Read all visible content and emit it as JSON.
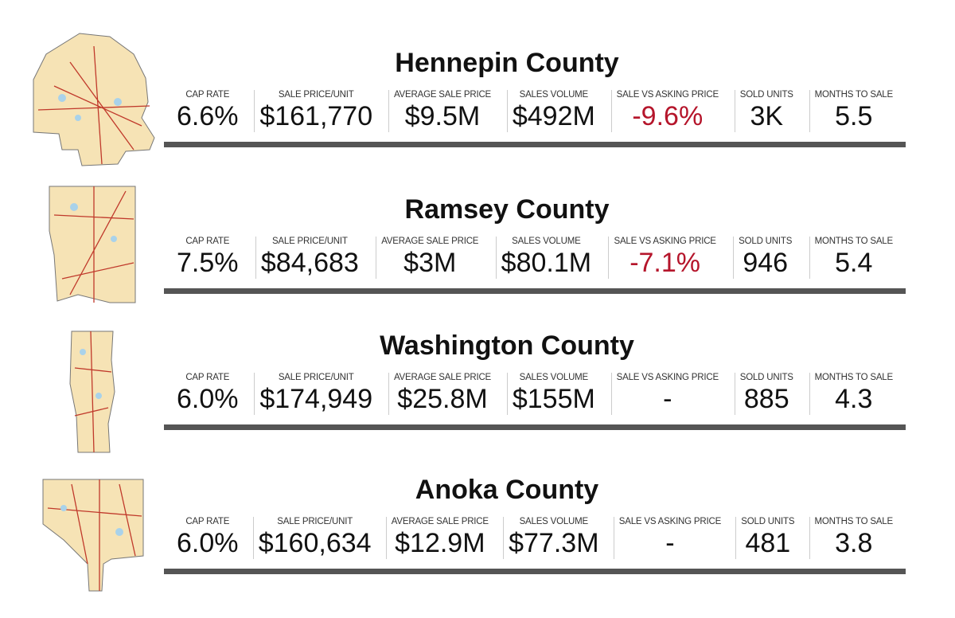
{
  "negative_color": "#b5152b",
  "counties": [
    {
      "name": "Hennepin County",
      "stats": [
        {
          "label": "CAP RATE",
          "value": "6.6%"
        },
        {
          "label": "SALE PRICE/UNIT",
          "value": "$161,770"
        },
        {
          "label": "AVERAGE SALE PRICE",
          "value": "$9.5M"
        },
        {
          "label": "SALES VOLUME",
          "value": "$492M"
        },
        {
          "label": "SALE VS ASKING PRICE",
          "value": "-9.6%"
        },
        {
          "label": "SOLD UNITS",
          "value": "3K"
        },
        {
          "label": "MONTHS TO SALE",
          "value": "5.5"
        }
      ]
    },
    {
      "name": "Ramsey County",
      "stats": [
        {
          "label": "CAP RATE",
          "value": "7.5%"
        },
        {
          "label": "SALE PRICE/UNIT",
          "value": "$84,683"
        },
        {
          "label": "AVERAGE SALE PRICE",
          "value": "$3M"
        },
        {
          "label": "SALES VOLUME",
          "value": "$80.1M"
        },
        {
          "label": "SALE VS ASKING PRICE",
          "value": "-7.1%"
        },
        {
          "label": "SOLD UNITS",
          "value": "946"
        },
        {
          "label": "MONTHS TO SALE",
          "value": "5.4"
        }
      ]
    },
    {
      "name": "Washington County",
      "stats": [
        {
          "label": "CAP RATE",
          "value": "6.0%"
        },
        {
          "label": "SALE PRICE/UNIT",
          "value": "$174,949"
        },
        {
          "label": "AVERAGE SALE PRICE",
          "value": "$25.8M"
        },
        {
          "label": "SALES VOLUME",
          "value": "$155M"
        },
        {
          "label": "SALE VS ASKING PRICE",
          "value": "-"
        },
        {
          "label": "SOLD UNITS",
          "value": "885"
        },
        {
          "label": "MONTHS TO SALE",
          "value": "4.3"
        }
      ]
    },
    {
      "name": "Anoka County",
      "stats": [
        {
          "label": "CAP RATE",
          "value": "6.0%"
        },
        {
          "label": "SALE PRICE/UNIT",
          "value": "$160,634"
        },
        {
          "label": "AVERAGE SALE PRICE",
          "value": "$12.9M"
        },
        {
          "label": "SALES VOLUME",
          "value": "$77.3M"
        },
        {
          "label": "SALE VS ASKING PRICE",
          "value": "-"
        },
        {
          "label": "SOLD UNITS",
          "value": "481"
        },
        {
          "label": "MONTHS TO SALE",
          "value": "3.8"
        }
      ]
    }
  ]
}
